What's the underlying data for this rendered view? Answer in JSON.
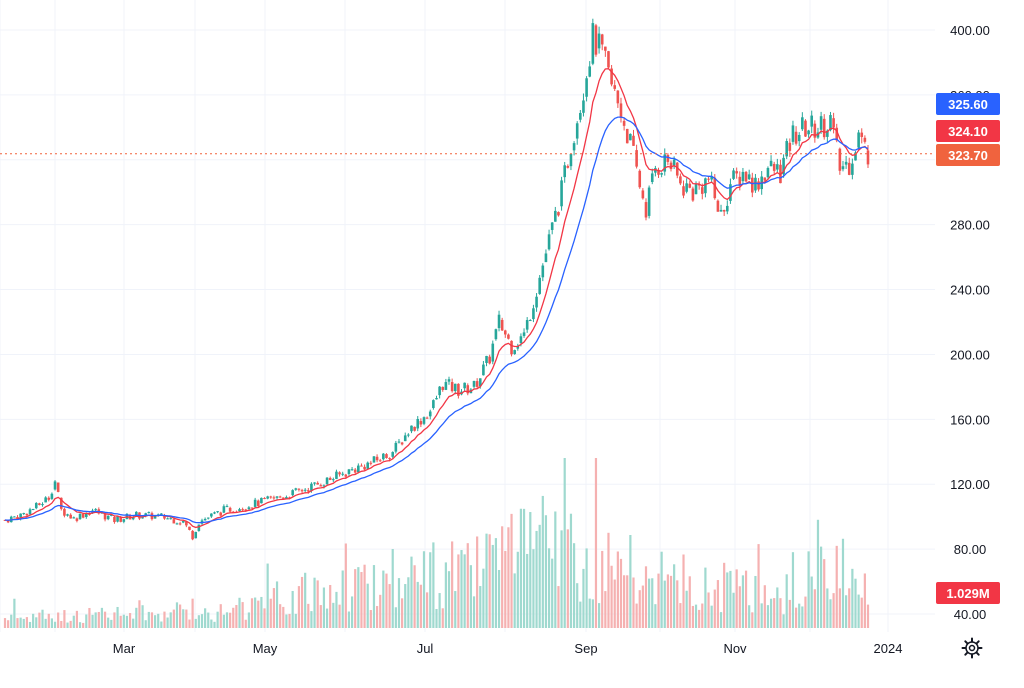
{
  "chart_data": {
    "type": "candlestick",
    "x_labels": [
      "Mar",
      "May",
      "Jul",
      "Sep",
      "Nov",
      "2024"
    ],
    "y_ticks": [
      40,
      80,
      120,
      160,
      200,
      240,
      280,
      320,
      360,
      400
    ],
    "y_tick_labels": [
      "40.00",
      "80.00",
      "120.00",
      "160.00",
      "200.00",
      "240.00",
      "280.00",
      "320.00",
      "360.00",
      "400.00"
    ],
    "ylim": [
      35,
      410
    ],
    "grid": true,
    "price_key_points": [
      {
        "t": 0,
        "v": 98
      },
      {
        "t": 5,
        "v": 101
      },
      {
        "t": 10,
        "v": 106
      },
      {
        "t": 14,
        "v": 112
      },
      {
        "t": 16,
        "v": 122
      },
      {
        "t": 18,
        "v": 104
      },
      {
        "t": 22,
        "v": 99
      },
      {
        "t": 28,
        "v": 104
      },
      {
        "t": 35,
        "v": 98
      },
      {
        "t": 42,
        "v": 101
      },
      {
        "t": 50,
        "v": 100
      },
      {
        "t": 57,
        "v": 97
      },
      {
        "t": 60,
        "v": 88
      },
      {
        "t": 62,
        "v": 97
      },
      {
        "t": 70,
        "v": 104
      },
      {
        "t": 80,
        "v": 108
      },
      {
        "t": 90,
        "v": 113
      },
      {
        "t": 100,
        "v": 120
      },
      {
        "t": 110,
        "v": 128
      },
      {
        "t": 118,
        "v": 134
      },
      {
        "t": 124,
        "v": 140
      },
      {
        "t": 130,
        "v": 155
      },
      {
        "t": 136,
        "v": 165
      },
      {
        "t": 140,
        "v": 182
      },
      {
        "t": 145,
        "v": 178
      },
      {
        "t": 150,
        "v": 180
      },
      {
        "t": 155,
        "v": 198
      },
      {
        "t": 158,
        "v": 220
      },
      {
        "t": 162,
        "v": 205
      },
      {
        "t": 166,
        "v": 212
      },
      {
        "t": 170,
        "v": 240
      },
      {
        "t": 174,
        "v": 270
      },
      {
        "t": 178,
        "v": 300
      },
      {
        "t": 181,
        "v": 330
      },
      {
        "t": 184,
        "v": 355
      },
      {
        "t": 188,
        "v": 395
      },
      {
        "t": 191,
        "v": 385
      },
      {
        "t": 194,
        "v": 365
      },
      {
        "t": 197,
        "v": 350
      },
      {
        "t": 200,
        "v": 330
      },
      {
        "t": 203,
        "v": 305
      },
      {
        "t": 205,
        "v": 290
      },
      {
        "t": 208,
        "v": 315
      },
      {
        "t": 212,
        "v": 320
      },
      {
        "t": 216,
        "v": 305
      },
      {
        "t": 220,
        "v": 300
      },
      {
        "t": 225,
        "v": 308
      },
      {
        "t": 229,
        "v": 285
      },
      {
        "t": 232,
        "v": 305
      },
      {
        "t": 236,
        "v": 312
      },
      {
        "t": 240,
        "v": 305
      },
      {
        "t": 244,
        "v": 315
      },
      {
        "t": 248,
        "v": 312
      },
      {
        "t": 252,
        "v": 335
      },
      {
        "t": 256,
        "v": 340
      },
      {
        "t": 260,
        "v": 340
      },
      {
        "t": 264,
        "v": 345
      },
      {
        "t": 267,
        "v": 315
      },
      {
        "t": 270,
        "v": 318
      },
      {
        "t": 273,
        "v": 335
      },
      {
        "t": 276,
        "v": 323.7
      }
    ],
    "volume_key_points": [
      {
        "t": 0,
        "v": 0.3
      },
      {
        "t": 40,
        "v": 0.4
      },
      {
        "t": 70,
        "v": 0.5
      },
      {
        "t": 110,
        "v": 1.2
      },
      {
        "t": 150,
        "v": 1.6
      },
      {
        "t": 175,
        "v": 2.4
      },
      {
        "t": 190,
        "v": 1.8
      },
      {
        "t": 220,
        "v": 1.2
      },
      {
        "t": 250,
        "v": 1.0
      },
      {
        "t": 265,
        "v": 1.8
      },
      {
        "t": 276,
        "v": 1.0
      }
    ],
    "series": [
      {
        "name": "",
        "color": "#f23645",
        "role": "short-ma"
      },
      {
        "name": "",
        "color": "#2962ff",
        "role": "long-ma"
      }
    ],
    "colors": {
      "up": "#26a69a",
      "down": "#ef5350",
      "up_volume": "#9fd9cf",
      "down_volume": "#f5b1b1"
    },
    "last_price": 323.7,
    "badges": [
      {
        "text": "325.60",
        "value": 325.6,
        "color": "#2962ff"
      },
      {
        "text": "324.10",
        "value": 324.1,
        "color": "#f23645"
      },
      {
        "text": "323.70",
        "value": 323.7,
        "color": "#f0633e"
      }
    ],
    "volume_badge": {
      "text": "1.029M",
      "color": "#f23645"
    }
  },
  "settings": {
    "icon": "gear-icon"
  }
}
